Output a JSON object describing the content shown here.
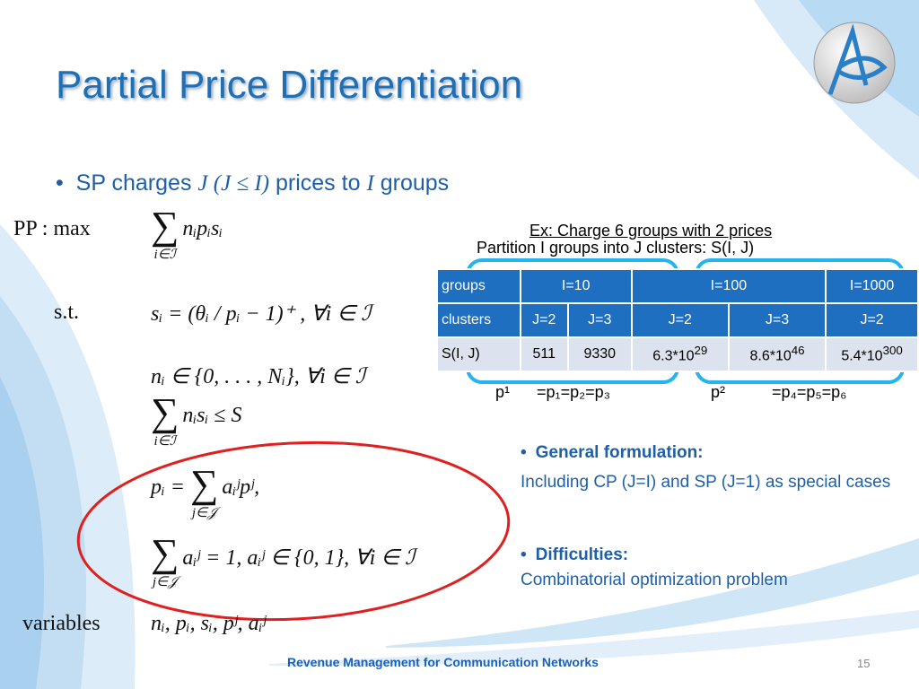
{
  "title": "Partial Price Differentiation",
  "bullet": {
    "lead": "SP charges",
    "math1": "J (J ≤ I)",
    "mid": "prices to",
    "math2": "I",
    "tail": "groups"
  },
  "formulation": [
    {
      "label": "PP : max",
      "sum": "∑",
      "under": "i∈ℐ",
      "expr": "nᵢpᵢsᵢ"
    },
    {
      "label": "s.t.",
      "expr": "sᵢ = (θᵢ / pᵢ − 1)⁺ ,  ∀i ∈ ℐ"
    },
    {
      "expr": "nᵢ ∈ {0, . . . , Nᵢ},  ∀i ∈ ℐ"
    },
    {
      "sum": "∑",
      "under": "i∈ℐ",
      "expr": "nᵢsᵢ ≤ S"
    },
    {
      "pre": "pᵢ =",
      "sum": "∑",
      "under": "j∈𝒥",
      "expr": "aᵢʲpʲ,"
    },
    {
      "sum": "∑",
      "under": "j∈𝒥",
      "expr": "aᵢʲ = 1,  aᵢʲ ∈ {0, 1},  ∀i ∈ ℐ"
    },
    {
      "label": "variables",
      "expr": "nᵢ, pᵢ, sᵢ, pʲ, aᵢʲ"
    }
  ],
  "example": {
    "line1": "Ex: Charge 6 groups with 2 prices",
    "line2": "Partition I groups into J clusters: S(I, J)",
    "price1": "p¹",
    "groups1": "=p₁=p₂=p₃",
    "price2": "p²",
    "groups2": "=p₄=p₅=p₆"
  },
  "table": {
    "rows": [
      [
        "groups",
        "I=10",
        "I=100",
        "I=1000"
      ],
      [
        "clusters",
        "J=2",
        "J=3",
        "J=2",
        "J=3",
        "J=2"
      ],
      [
        "S(I, J)",
        "511",
        "9330",
        {
          "text": "6.3*10",
          "sup": "29"
        },
        {
          "text": "8.6*10",
          "sup": "46"
        },
        {
          "text": "5.4*10",
          "sup": "300"
        }
      ]
    ]
  },
  "points": [
    {
      "heading": "General formulation:",
      "body": "Including CP (J=I) and SP (J=1) as special cases"
    },
    {
      "heading": "Difficulties:",
      "body": "Combinatorial optimization problem"
    }
  ],
  "footer": {
    "course": "Revenue Management for Communication Networks",
    "page": "15"
  }
}
